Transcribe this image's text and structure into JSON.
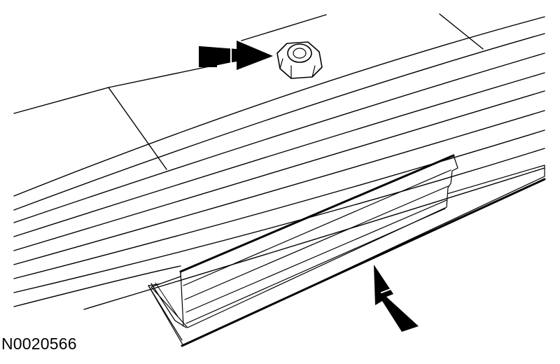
{
  "figure": {
    "id_label": "N0020566",
    "line_color": "#000000",
    "fill_color": "#ffffff"
  }
}
